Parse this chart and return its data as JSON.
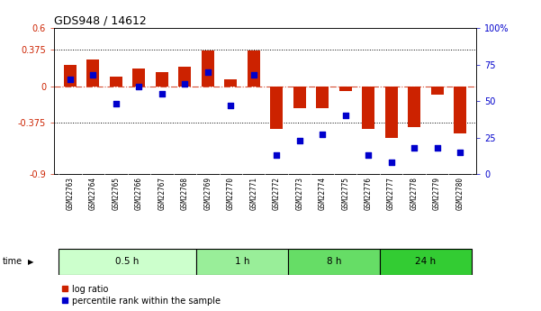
{
  "title": "GDS948 / 14612",
  "samples": [
    "GSM22763",
    "GSM22764",
    "GSM22765",
    "GSM22766",
    "GSM22767",
    "GSM22768",
    "GSM22769",
    "GSM22770",
    "GSM22771",
    "GSM22772",
    "GSM22773",
    "GSM22774",
    "GSM22775",
    "GSM22776",
    "GSM22777",
    "GSM22778",
    "GSM22779",
    "GSM22780"
  ],
  "log_ratio": [
    0.22,
    0.28,
    0.1,
    0.18,
    0.15,
    0.2,
    0.37,
    0.07,
    0.37,
    -0.44,
    -0.22,
    -0.22,
    -0.05,
    -0.44,
    -0.53,
    -0.42,
    -0.08,
    -0.48
  ],
  "percentile": [
    65,
    68,
    48,
    60,
    55,
    62,
    70,
    47,
    68,
    13,
    23,
    27,
    40,
    13,
    8,
    18,
    18,
    15
  ],
  "ylim_left": [
    -0.9,
    0.6
  ],
  "ylim_right": [
    0,
    100
  ],
  "yticks_left": [
    -0.9,
    -0.375,
    0,
    0.375,
    0.6
  ],
  "yticks_right": [
    0,
    25,
    50,
    75,
    100
  ],
  "ytick_labels_left": [
    "-0.9",
    "-0.375",
    "0",
    "0.375",
    "0.6"
  ],
  "ytick_labels_right": [
    "0",
    "25",
    "50",
    "75",
    "100%"
  ],
  "dotted_lines": [
    0.375,
    -0.375
  ],
  "zero_line": 0,
  "bar_color": "#cc2200",
  "dot_color": "#0000cc",
  "time_groups": [
    {
      "label": "0.5 h",
      "start": 0,
      "end": 6,
      "color": "#ccffcc"
    },
    {
      "label": "1 h",
      "start": 6,
      "end": 10,
      "color": "#99ee99"
    },
    {
      "label": "8 h",
      "start": 10,
      "end": 14,
      "color": "#66dd66"
    },
    {
      "label": "24 h",
      "start": 14,
      "end": 18,
      "color": "#33cc33"
    }
  ],
  "legend_items": [
    {
      "label": "log ratio",
      "color": "#cc2200"
    },
    {
      "label": "percentile rank within the sample",
      "color": "#0000cc"
    }
  ],
  "bar_width": 0.55,
  "dot_size": 22,
  "axis_bg": "#ffffff",
  "sample_band_color": "#cccccc",
  "time_label": "time"
}
